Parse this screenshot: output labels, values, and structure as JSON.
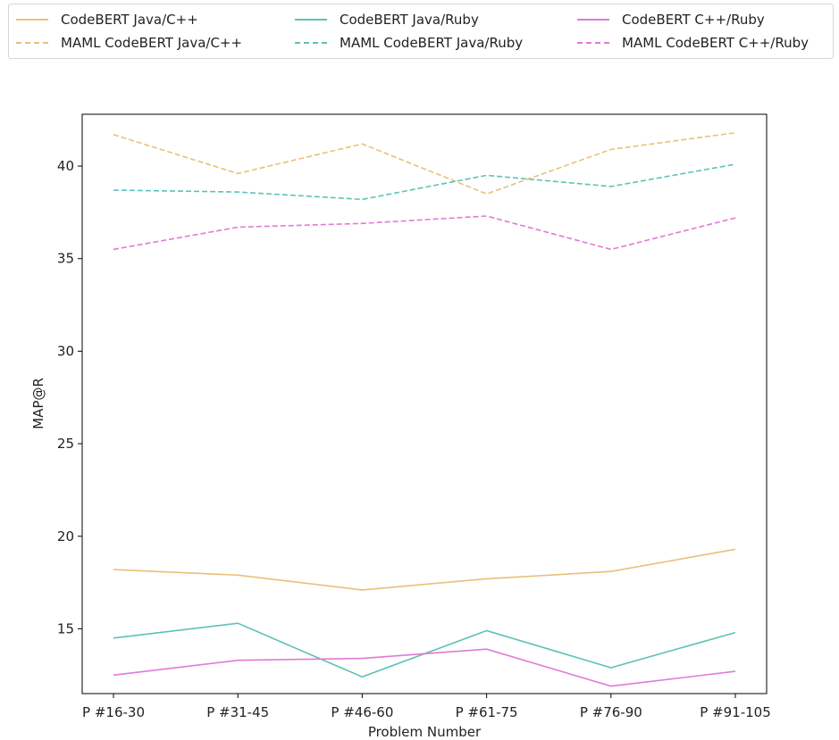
{
  "chart_data": {
    "type": "line",
    "title": "",
    "xlabel": "Problem Number",
    "ylabel": "MAP@R",
    "categories": [
      "P #16-30",
      "P #31-45",
      "P #46-60",
      "P #61-75",
      "P #76-90",
      "P #91-105"
    ],
    "ylim": [
      11.5,
      42.8
    ],
    "yticks": [
      15,
      20,
      25,
      30,
      35,
      40
    ],
    "grid": false,
    "legend_placement": "top",
    "series": [
      {
        "name": "CodeBERT Java/C++",
        "color": "#e8c17a",
        "style": "solid",
        "values": [
          18.2,
          17.9,
          17.1,
          17.7,
          18.1,
          19.3
        ]
      },
      {
        "name": "MAML CodeBERT Java/C++",
        "color": "#e8c17a",
        "style": "dashed",
        "values": [
          41.7,
          39.6,
          41.2,
          38.5,
          40.9,
          41.8
        ]
      },
      {
        "name": "CodeBERT Java/Ruby",
        "color": "#5cc2b5",
        "style": "solid",
        "values": [
          14.5,
          15.3,
          12.4,
          14.9,
          12.9,
          14.8
        ]
      },
      {
        "name": "MAML CodeBERT Java/Ruby",
        "color": "#5cc2b5",
        "style": "dashed",
        "values": [
          38.7,
          38.6,
          38.2,
          39.5,
          38.9,
          40.1
        ]
      },
      {
        "name": "CodeBERT C++/Ruby",
        "color": "#e07ad6",
        "style": "solid",
        "values": [
          12.5,
          13.3,
          13.4,
          13.9,
          11.9,
          12.7
        ]
      },
      {
        "name": "MAML CodeBERT C++/Ruby",
        "color": "#e07ad6",
        "style": "dashed",
        "values": [
          35.5,
          36.7,
          36.9,
          37.3,
          35.5,
          37.2
        ]
      }
    ]
  }
}
